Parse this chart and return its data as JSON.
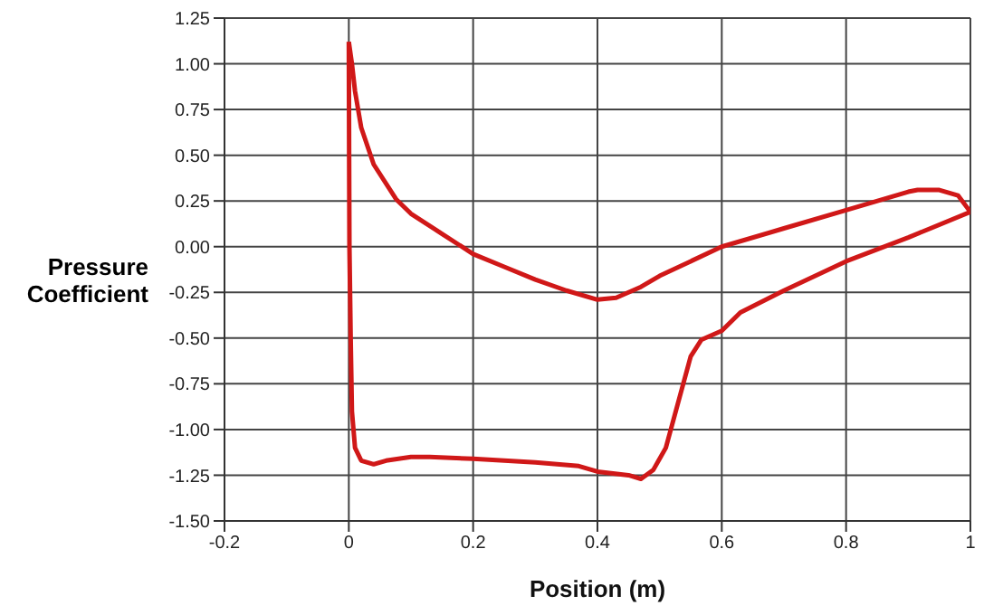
{
  "chart_data": {
    "type": "line",
    "xlabel": "Position (m)",
    "ylabel": "Pressure Coefficient",
    "xlim": [
      -0.2,
      1
    ],
    "xticks": [
      -0.2,
      0,
      0.2,
      0.4,
      0.6,
      {
        "value": 0.8,
        "label": "0.8"
      },
      {
        "value": 1,
        "label": "1"
      }
    ],
    "ylim": [
      -1.5,
      1.25
    ],
    "yticks": [
      {
        "value": -1.5,
        "label": "-1.50"
      },
      {
        "value": -1.25,
        "label": "-1.25"
      },
      {
        "value": -1,
        "label": "-1.00"
      },
      {
        "value": -0.75,
        "label": "-0.75"
      },
      {
        "value": -0.5,
        "label": "-0.50"
      },
      {
        "value": -0.25,
        "label": "-0.25"
      },
      {
        "value": 0,
        "label": "0.00"
      },
      {
        "value": 0.25,
        "label": "0.25"
      },
      {
        "value": 0.5,
        "label": "0.50"
      },
      {
        "value": 0.75,
        "label": "0.75"
      },
      {
        "value": 1,
        "label": "1.00"
      },
      {
        "value": 1.25,
        "label": "1.25"
      }
    ],
    "grid": true,
    "marker": "none",
    "line_style": "solid",
    "series": [
      {
        "color": "#d01818",
        "x": [
          0,
          0.005,
          0.01,
          0.02,
          0.04,
          0.076,
          0.1,
          0.15,
          0.2,
          0.25,
          0.3,
          0.35,
          0.4,
          0.43,
          0.47,
          0.5,
          0.55,
          0.6,
          0.7,
          0.8,
          0.9,
          0.915,
          0.95,
          0.98,
          1.0
        ],
        "values": [
          1.12,
          1.0,
          0.85,
          0.65,
          0.45,
          0.26,
          0.18,
          0.07,
          -0.04,
          -0.11,
          -0.18,
          -0.24,
          -0.29,
          -0.28,
          -0.22,
          -0.16,
          -0.08,
          0.0,
          0.1,
          0.2,
          0.3,
          0.31,
          0.31,
          0.28,
          0.19
        ]
      },
      {
        "color": "#d01818",
        "x": [
          0,
          0.0005,
          0.001,
          0.003,
          0.005,
          0.01,
          0.02,
          0.04,
          0.06,
          0.1,
          0.13,
          0.2,
          0.3,
          0.37,
          0.4,
          0.45,
          0.47,
          0.49,
          0.51,
          0.53,
          0.55,
          0.567,
          0.6,
          0.63,
          0.7,
          0.8,
          0.9,
          1.0
        ],
        "values": [
          1.12,
          0.5,
          0.0,
          -0.5,
          -0.9,
          -1.1,
          -1.17,
          -1.19,
          -1.17,
          -1.15,
          -1.15,
          -1.16,
          -1.18,
          -1.2,
          -1.23,
          -1.25,
          -1.27,
          -1.22,
          -1.1,
          -0.85,
          -0.6,
          -0.51,
          -0.46,
          -0.36,
          -0.24,
          -0.08,
          0.05,
          0.19
        ]
      }
    ]
  }
}
